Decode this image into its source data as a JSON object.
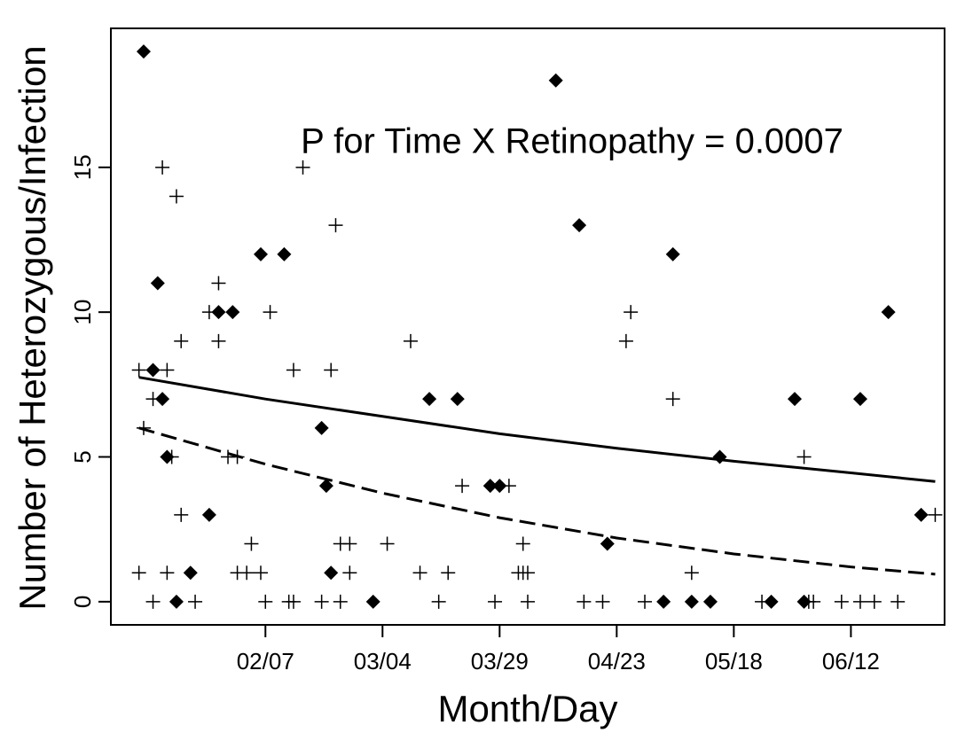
{
  "chart_data": {
    "type": "scatter",
    "annotation": "P for Time X Retinopathy = 0.0007",
    "xlabel": "Month/Day",
    "ylabel": "Number of Heterozygous/Infection",
    "xlim": [
      5,
      183
    ],
    "ylim": [
      -0.8,
      19.8
    ],
    "xticks": [
      {
        "value": 38,
        "label": "02/07"
      },
      {
        "value": 63,
        "label": "03/04"
      },
      {
        "value": 88,
        "label": "03/29"
      },
      {
        "value": 113,
        "label": "04/23"
      },
      {
        "value": 138,
        "label": "05/18"
      },
      {
        "value": 163,
        "label": "06/12"
      }
    ],
    "yticks": [
      0,
      5,
      10,
      15
    ],
    "series": [
      {
        "marker": "diamond",
        "color": "#000000",
        "x": [
          12,
          14,
          15,
          16,
          17,
          19,
          22,
          26,
          28,
          31,
          37,
          42,
          50,
          51,
          52,
          61,
          73,
          79,
          86,
          88,
          100,
          105,
          111,
          123,
          125,
          129,
          133,
          135,
          146,
          151,
          153,
          165,
          171,
          178
        ],
        "values": [
          19,
          8,
          11,
          7,
          5,
          0,
          1,
          3,
          10,
          10,
          12,
          12,
          6,
          4,
          1,
          0,
          7,
          7,
          4,
          4,
          18,
          13,
          2,
          0,
          12,
          0,
          0,
          5,
          0,
          7,
          0,
          7,
          10,
          3
        ]
      },
      {
        "marker": "plus",
        "color": "#000000",
        "x": [
          11,
          11,
          12,
          14,
          14,
          16,
          17,
          17,
          18,
          19,
          20,
          20,
          23,
          26,
          28,
          28,
          30,
          32,
          32,
          34,
          35,
          37,
          38,
          39,
          43,
          44,
          44,
          46,
          50,
          52,
          53,
          54,
          54,
          56,
          56,
          64,
          69,
          71,
          75,
          77,
          80,
          87,
          90,
          92,
          93,
          93,
          94,
          94,
          106,
          110,
          115,
          116,
          119,
          125,
          129,
          144,
          153,
          154,
          155,
          161,
          165,
          168,
          173,
          181
        ],
        "values": [
          8,
          1,
          6,
          0,
          7,
          15,
          1,
          8,
          5,
          14,
          9,
          3,
          0,
          10,
          11,
          9,
          5,
          5,
          1,
          1,
          2,
          1,
          0,
          10,
          0,
          0,
          8,
          15,
          0,
          8,
          13,
          0,
          2,
          2,
          1,
          2,
          9,
          1,
          0,
          1,
          4,
          0,
          4,
          1,
          2,
          1,
          1,
          0,
          0,
          0,
          9,
          10,
          0,
          7,
          1,
          0,
          5,
          0,
          0,
          0,
          0,
          0,
          0,
          3
        ]
      },
      {
        "marker": "line",
        "dash": "solid",
        "color": "#000000",
        "x": [
          11,
          38,
          63,
          88,
          113,
          138,
          163,
          181
        ],
        "values": [
          7.75,
          7.0,
          6.4,
          5.8,
          5.3,
          4.85,
          4.45,
          4.15
        ]
      },
      {
        "marker": "line",
        "dash": "dashed",
        "color": "#000000",
        "x": [
          11,
          38,
          63,
          88,
          113,
          138,
          163,
          181
        ],
        "values": [
          6.0,
          4.75,
          3.75,
          2.9,
          2.2,
          1.65,
          1.2,
          0.95
        ]
      }
    ]
  }
}
